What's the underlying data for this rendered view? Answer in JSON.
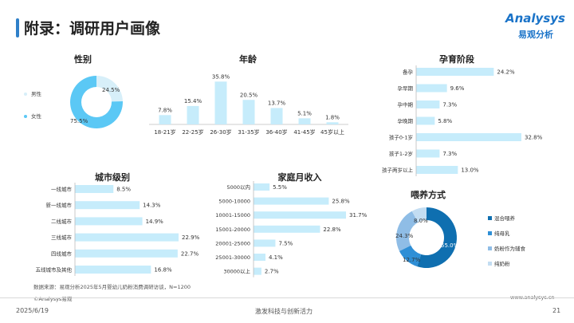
{
  "header": {
    "title": "附录：调研用户画像",
    "logo_text": "Analysys",
    "logo_sub": "易观分析"
  },
  "footer": {
    "source_note": "数据来源：易观分析2025年5月婴幼儿奶粉消费调研访谈，N=1200",
    "copyright": "©Analysys易观",
    "website": "www.analysys.cn",
    "date": "2025/6/19",
    "slogan": "激发科技与创新活力",
    "page": "21"
  },
  "colors": {
    "bar": "#c6ecfb",
    "bar_border": "#b8e5f7",
    "donut_light": "#5bc8f5",
    "donut_pale": "#d7eff9",
    "feed_dark": "#0f6fb0",
    "feed_mid": "#2f8fd6",
    "feed_light": "#8fbde6",
    "feed_pale": "#c3ddf2",
    "accent": "#2f80c9"
  },
  "chart_data": [
    {
      "id": "gender",
      "type": "pie",
      "title": "性别",
      "categories": [
        "男性",
        "女性"
      ],
      "values": [
        24.5,
        75.5
      ],
      "labels": [
        "24.5%",
        "75.5%"
      ]
    },
    {
      "id": "age",
      "type": "bar",
      "title": "年龄",
      "categories": [
        "18-21岁",
        "22-25岁",
        "26-30岁",
        "31-35岁",
        "36-40岁",
        "41-45岁",
        "45岁以上"
      ],
      "values": [
        7.8,
        15.4,
        35.8,
        20.5,
        13.7,
        5.1,
        1.8
      ],
      "labels": [
        "7.8%",
        "15.4%",
        "35.8%",
        "20.5%",
        "13.7%",
        "5.1%",
        "1.8%"
      ]
    },
    {
      "id": "pregnancy",
      "type": "bar",
      "orientation": "horizontal",
      "title": "孕育阶段",
      "categories": [
        "备孕",
        "孕早期",
        "孕中期",
        "孕晚期",
        "孩子0-1岁",
        "孩子1-2岁",
        "孩子两岁以上"
      ],
      "values": [
        24.2,
        9.6,
        7.3,
        5.8,
        32.8,
        7.3,
        13.0
      ],
      "labels": [
        "24.2%",
        "9.6%",
        "7.3%",
        "5.8%",
        "32.8%",
        "7.3%",
        "13.0%"
      ]
    },
    {
      "id": "city",
      "type": "bar",
      "orientation": "horizontal",
      "title": "城市级别",
      "categories": [
        "一线城市",
        "新一线城市",
        "二线城市",
        "三线城市",
        "四线城市",
        "五线城市及其他"
      ],
      "values": [
        8.5,
        14.3,
        14.9,
        22.9,
        22.7,
        16.8
      ],
      "labels": [
        "8.5%",
        "14.3%",
        "14.9%",
        "22.9%",
        "22.7%",
        "16.8%"
      ]
    },
    {
      "id": "income",
      "type": "bar",
      "orientation": "horizontal",
      "title": "家庭月收入",
      "categories": [
        "5000以内",
        "5000-10000",
        "10001-15000",
        "15001-20000",
        "20001-25000",
        "25001-30000",
        "30000以上"
      ],
      "values": [
        5.5,
        25.8,
        31.7,
        22.8,
        7.5,
        4.1,
        2.7
      ],
      "labels": [
        "5.5%",
        "25.8%",
        "31.7%",
        "22.8%",
        "7.5%",
        "4.1%",
        "2.7%"
      ]
    },
    {
      "id": "feeding",
      "type": "pie",
      "title": "喂养方式",
      "categories": [
        "混合喂养",
        "纯母乳",
        "奶粉作为辅食",
        "纯奶粉"
      ],
      "values": [
        55.0,
        12.7,
        24.3,
        8.0
      ],
      "labels": [
        "55.0%",
        "12.7%",
        "24.3%",
        "8.0%"
      ]
    }
  ]
}
